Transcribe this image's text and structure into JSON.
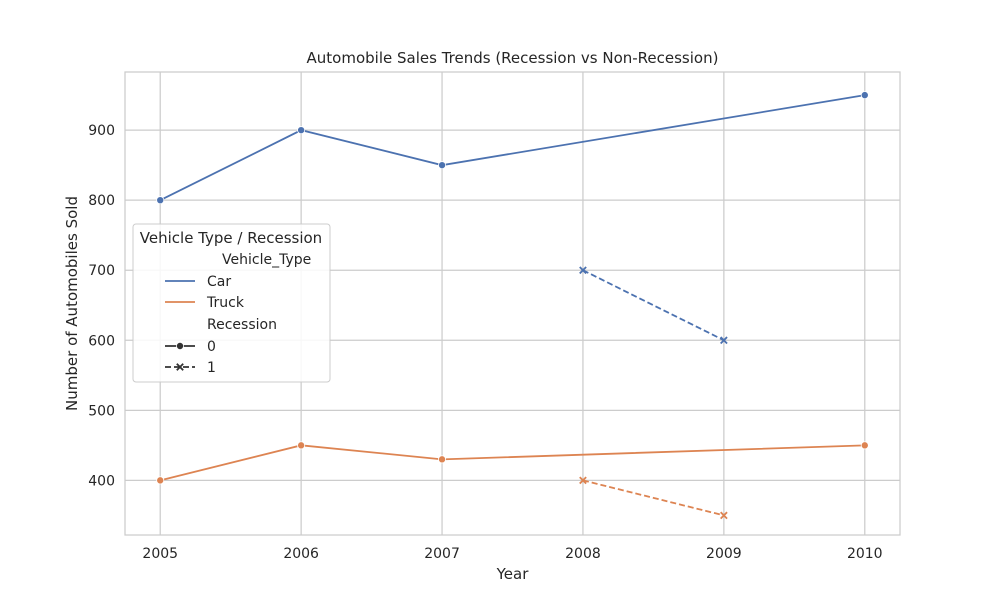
{
  "chart_data": {
    "type": "line",
    "title": "Automobile Sales Trends (Recession vs Non-Recession)",
    "xlabel": "Year",
    "ylabel": "Number of Automobiles Sold",
    "xlim": [
      2004.75,
      2010.25
    ],
    "ylim": [
      322,
      983
    ],
    "xticks": [
      2005,
      2006,
      2007,
      2008,
      2009,
      2010
    ],
    "yticks": [
      400,
      500,
      600,
      700,
      800,
      900
    ],
    "grid": true,
    "legend_placement": "center-left",
    "series": [
      {
        "vehicle_type": "Car",
        "recession": "0",
        "color": "#4c72b0",
        "line_style": "solid",
        "marker": "circle",
        "x": [
          2005,
          2006,
          2007,
          2010
        ],
        "y": [
          800,
          900,
          850,
          950
        ]
      },
      {
        "vehicle_type": "Car",
        "recession": "1",
        "color": "#4c72b0",
        "line_style": "dashed",
        "marker": "x",
        "x": [
          2008,
          2009
        ],
        "y": [
          700,
          600
        ]
      },
      {
        "vehicle_type": "Truck",
        "recession": "0",
        "color": "#dd8452",
        "line_style": "solid",
        "marker": "circle",
        "x": [
          2005,
          2006,
          2007,
          2010
        ],
        "y": [
          400,
          450,
          430,
          450
        ]
      },
      {
        "vehicle_type": "Truck",
        "recession": "1",
        "color": "#dd8452",
        "line_style": "dashed",
        "marker": "x",
        "x": [
          2008,
          2009
        ],
        "y": [
          400,
          350
        ]
      }
    ],
    "legend": {
      "title": "Vehicle Type / Recession",
      "hue_header": "Vehicle_Type",
      "hue_entries": [
        {
          "label": "Car",
          "color": "#4c72b0"
        },
        {
          "label": "Truck",
          "color": "#dd8452"
        }
      ],
      "style_header": "Recession",
      "style_entries": [
        {
          "label": "0",
          "line_style": "solid",
          "marker": "circle"
        },
        {
          "label": "1",
          "line_style": "dashed",
          "marker": "x"
        }
      ]
    }
  }
}
